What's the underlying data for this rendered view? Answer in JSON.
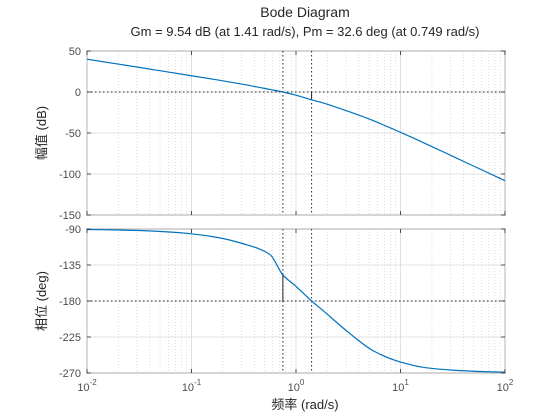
{
  "chart_data": {
    "type": "line",
    "title": "Bode Diagram",
    "subtitle": "Gm = 9.54 dB (at 1.41 rad/s),  Pm = 32.6 deg (at 0.749 rad/s)",
    "xlabel": "频率  (rad/s)",
    "x_scale": "log",
    "xlim": [
      0.01,
      100
    ],
    "x_ticks": [
      0.01,
      0.1,
      1,
      10,
      100
    ],
    "x_tick_labels": [
      {
        "base": "10",
        "exp": "-2"
      },
      {
        "base": "10",
        "exp": "-1"
      },
      {
        "base": "10",
        "exp": "0"
      },
      {
        "base": "10",
        "exp": "1"
      },
      {
        "base": "10",
        "exp": "2"
      }
    ],
    "grid": true,
    "subplots": [
      {
        "name": "magnitude",
        "ylabel": "幅值 (dB)",
        "ylim": [
          -150,
          50
        ],
        "yticks": [
          50,
          0,
          -50,
          -100,
          -150
        ],
        "reference_line": 0,
        "series": [
          {
            "x": [
              0.01,
              0.0178,
              0.0316,
              0.0562,
              0.1,
              0.178,
              0.316,
              0.562,
              0.749,
              1,
              1.41,
              1.78,
              3.16,
              5.62,
              10,
              17.8,
              31.6,
              56.2,
              100
            ],
            "y": [
              40.0,
              35.0,
              30.0,
              24.9,
              19.8,
              14.7,
              9.2,
              3.1,
              0.0,
              -3.9,
              -9.54,
              -13.0,
              -23.6,
              -35.5,
              -49.2,
              -63.6,
              -78.4,
              -93.3,
              -108.2
            ]
          }
        ],
        "gain_margin": {
          "frequency": 1.41,
          "value_db": -9.54
        }
      },
      {
        "name": "phase",
        "ylabel": "相位 (deg)",
        "ylim": [
          -270,
          -90
        ],
        "yticks": [
          -90,
          -135,
          -180,
          -225,
          -270
        ],
        "reference_line": -180,
        "series": [
          {
            "x": [
              0.01,
              0.0178,
              0.0316,
              0.0562,
              0.1,
              0.178,
              0.316,
              0.562,
              0.749,
              1,
              1.41,
              1.78,
              3.16,
              5.62,
              10,
              17.8,
              31.6,
              56.2,
              100
            ],
            "y": [
              -90.6,
              -91.1,
              -91.9,
              -93.4,
              -96.0,
              -100.6,
              -108.6,
              -121.8,
              -147.4,
              -161.6,
              -180.0,
              -191.0,
              -219.0,
              -243.0,
              -256.3,
              -263.5,
              -266.4,
              -268.1,
              -269.0
            ]
          }
        ],
        "phase_margin": {
          "frequency": 0.749,
          "value_deg": -147.4
        }
      }
    ]
  }
}
